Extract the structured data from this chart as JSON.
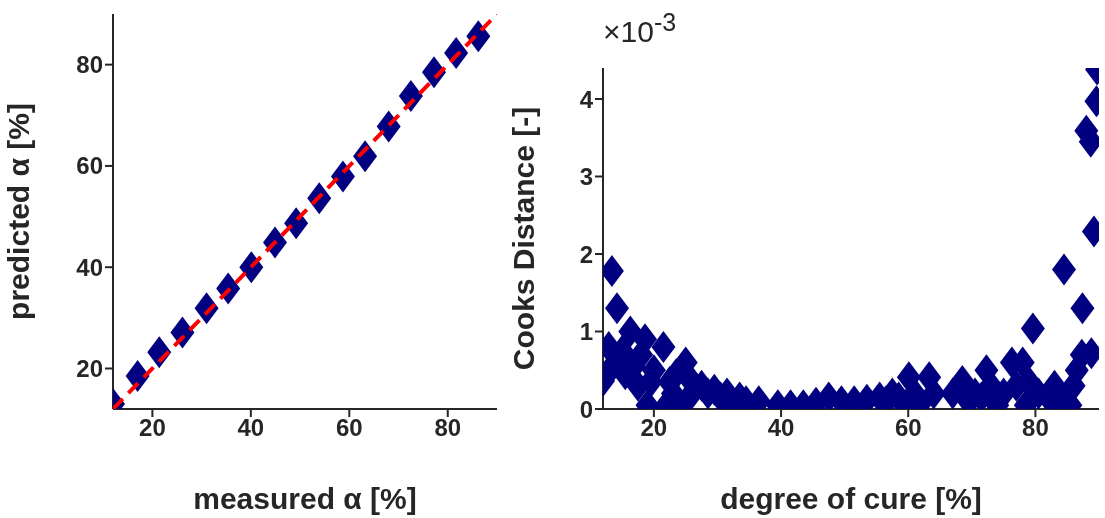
{
  "chart_data": [
    {
      "type": "scatter",
      "xlabel": "measured α [%]",
      "ylabel": "predicted α [%]",
      "xlim": [
        12,
        90
      ],
      "ylim": [
        12,
        90
      ],
      "xticks": [
        20,
        40,
        60,
        80
      ],
      "yticks": [
        20,
        40,
        60,
        80
      ],
      "series": [
        {
          "type": "scatter",
          "marker": "diamond",
          "color": "#000080",
          "x": [
            12,
            17,
            21.4,
            26.1,
            31,
            35.4,
            40.1,
            44.9,
            49.2,
            53.9,
            58.7,
            63.2,
            68,
            72.5,
            77.2,
            81.7,
            86.2
          ],
          "values": [
            13,
            18.5,
            23.2,
            27.1,
            31.9,
            35.8,
            40,
            44.9,
            48.7,
            53.6,
            57.9,
            61.9,
            67.8,
            73.8,
            78.5,
            82.3,
            85.6
          ]
        },
        {
          "type": "line",
          "marker": "none",
          "line_style": "dashed",
          "color": "#ff0000",
          "x": [
            12,
            90
          ],
          "values": [
            12,
            90
          ]
        }
      ]
    },
    {
      "type": "scatter",
      "xlabel": "degree of cure [%]",
      "ylabel": "Cooks Distance [-]",
      "annotations": [
        "×10$^{-3}$"
      ],
      "xlim": [
        12,
        90
      ],
      "ylim": [
        0,
        4.4
      ],
      "xticks": [
        20,
        40,
        60,
        80
      ],
      "yticks": [
        0,
        1,
        2,
        3,
        4
      ],
      "series": [
        {
          "type": "scatter",
          "marker": "diamond",
          "color": "#000080",
          "x": [
            12.0,
            12.9,
            13.4,
            13.5,
            14.2,
            15.0,
            15.5,
            16.3,
            16.8,
            17.5,
            18.0,
            18.6,
            19.0,
            19.5,
            20.0,
            21.5,
            22.0,
            22.5,
            23.0,
            23.5,
            24.0,
            25.0,
            25.5,
            26.0,
            27.5,
            28.5,
            29.5,
            30.5,
            31.5,
            32.5,
            33.5,
            34.5,
            36.5,
            39.5,
            41.5,
            43.5,
            45.5,
            47.5,
            49.5,
            51.5,
            53.5,
            55.5,
            56.5,
            57.5,
            58.5,
            59.5,
            60.1,
            61.0,
            62.0,
            63.3,
            64.0,
            67.0,
            68.5,
            69.5,
            70.5,
            71.5,
            72.3,
            73.0,
            74.0,
            75.0,
            76.3,
            77.0,
            78.0,
            78.5,
            79.0,
            79.6,
            80.5,
            82.5,
            83.0,
            84.0,
            84.5,
            85.5,
            86.0,
            86.5,
            87.3,
            87.4,
            88.0,
            88.7,
            88.8,
            89.2,
            89.6,
            89.7
          ],
          "values": [
            0.36,
            0.8,
            1.78,
            0.55,
            1.3,
            0.75,
            0.45,
            1.0,
            0.55,
            0.3,
            0.7,
            0.9,
            0.05,
            0.35,
            0.5,
            0.8,
            0.05,
            0.35,
            0.2,
            0.45,
            0.0,
            0.6,
            0.15,
            0.35,
            0.3,
            0.2,
            0.25,
            0.15,
            0.2,
            0.05,
            0.15,
            0.1,
            0.1,
            0.05,
            0.05,
            0.05,
            0.08,
            0.15,
            0.1,
            0.1,
            0.12,
            0.15,
            0.1,
            0.2,
            0.15,
            0.05,
            0.41,
            0.2,
            0.08,
            0.41,
            0.2,
            0.2,
            0.36,
            0.1,
            0.2,
            0.15,
            0.5,
            0.3,
            0.05,
            0.2,
            0.6,
            0.3,
            0.6,
            0.05,
            0.35,
            1.04,
            0.2,
            0.1,
            0.3,
            0.15,
            1.8,
            0.05,
            0.3,
            0.5,
            0.7,
            1.3,
            3.59,
            3.45,
            0.72,
            2.29,
            3.97,
            4.38
          ]
        }
      ]
    }
  ]
}
